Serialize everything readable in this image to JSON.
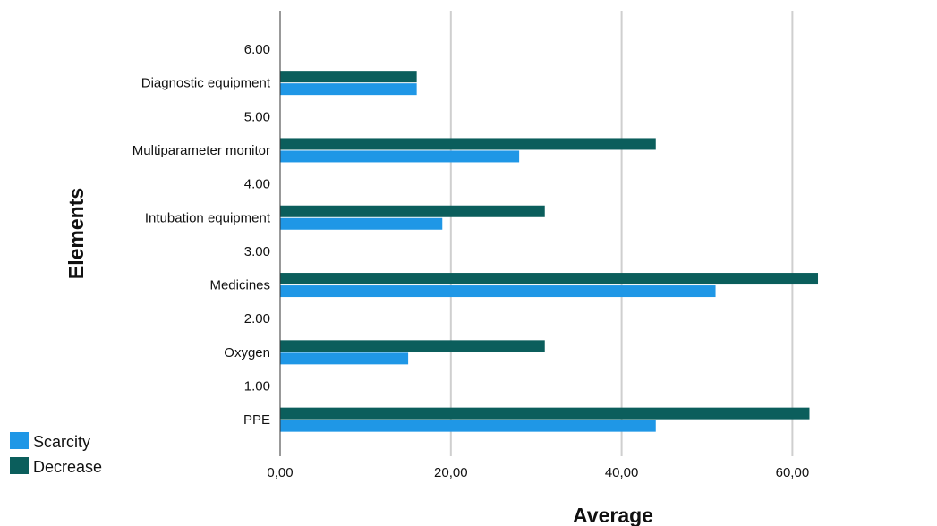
{
  "chart_data": {
    "type": "bar",
    "orientation": "horizontal",
    "xlabel": "Average",
    "ylabel": "Elements",
    "xlim": [
      0,
      75
    ],
    "x_ticks": [
      0,
      20,
      40,
      60
    ],
    "x_tick_labels": [
      "0,00",
      "20,00",
      "40,00",
      "60,00"
    ],
    "grid": "vertical",
    "legend_position": "bottom-left",
    "rows": [
      {
        "label": "6.00",
        "type": "spacer"
      },
      {
        "label": "Diagnostic equipment",
        "type": "category",
        "scarcity": 16,
        "decrease": 16
      },
      {
        "label": "5.00",
        "type": "spacer"
      },
      {
        "label": "Multiparameter monitor",
        "type": "category",
        "scarcity": 28,
        "decrease": 44
      },
      {
        "label": "4.00",
        "type": "spacer"
      },
      {
        "label": "Intubation equipment",
        "type": "category",
        "scarcity": 19,
        "decrease": 31
      },
      {
        "label": "3.00",
        "type": "spacer"
      },
      {
        "label": "Medicines",
        "type": "category",
        "scarcity": 51,
        "decrease": 63
      },
      {
        "label": "2.00",
        "type": "spacer"
      },
      {
        "label": "Oxygen",
        "type": "category",
        "scarcity": 15,
        "decrease": 31
      },
      {
        "label": "1.00",
        "type": "spacer"
      },
      {
        "label": "PPE",
        "type": "category",
        "scarcity": 44,
        "decrease": 62
      }
    ],
    "series": [
      {
        "name": "Scarcity",
        "key": "scarcity",
        "color": "#1f97e6"
      },
      {
        "name": "Decrease",
        "key": "decrease",
        "color": "#0b5e5c"
      }
    ]
  }
}
